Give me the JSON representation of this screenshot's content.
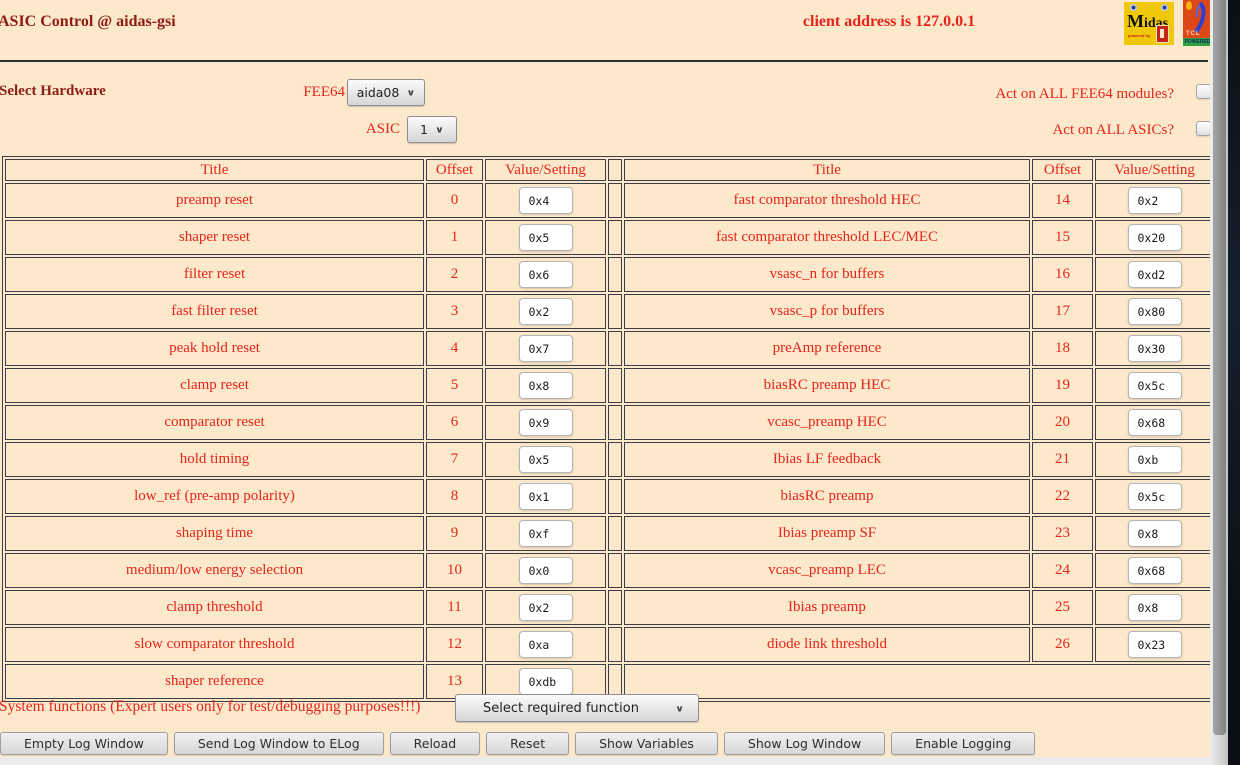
{
  "header": {
    "title": "ASIC Control @ aidas-gsi",
    "client_address": "client address is 127.0.0.1"
  },
  "logos": {
    "midas_word": "Midas",
    "midas_powered": "powered by",
    "tcl_word": "TCL",
    "tcl_powered": "POWERED"
  },
  "hardware": {
    "section_label": "Select Hardware",
    "fee64_label": "FEE64",
    "fee64_value": "aida08",
    "asic_label": "ASIC",
    "asic_value": "1",
    "all_fee64_label": "Act on ALL FEE64 modules?",
    "all_asics_label": "Act on ALL ASICs?"
  },
  "table": {
    "headers": [
      "Title",
      "Offset",
      "Value/Setting"
    ],
    "rows": [
      {
        "left": {
          "title": "preamp reset",
          "offset": "0",
          "value": "0x4"
        },
        "right": {
          "title": "fast comparator threshold HEC",
          "offset": "14",
          "value": "0x2"
        }
      },
      {
        "left": {
          "title": "shaper reset",
          "offset": "1",
          "value": "0x5"
        },
        "right": {
          "title": "fast comparator threshold LEC/MEC",
          "offset": "15",
          "value": "0x20"
        }
      },
      {
        "left": {
          "title": "filter reset",
          "offset": "2",
          "value": "0x6"
        },
        "right": {
          "title": "vsasc_n for buffers",
          "offset": "16",
          "value": "0xd2"
        }
      },
      {
        "left": {
          "title": "fast filter reset",
          "offset": "3",
          "value": "0x2"
        },
        "right": {
          "title": "vsasc_p for buffers",
          "offset": "17",
          "value": "0x80"
        }
      },
      {
        "left": {
          "title": "peak hold reset",
          "offset": "4",
          "value": "0x7"
        },
        "right": {
          "title": "preAmp reference",
          "offset": "18",
          "value": "0x30"
        }
      },
      {
        "left": {
          "title": "clamp reset",
          "offset": "5",
          "value": "0x8"
        },
        "right": {
          "title": "biasRC preamp HEC",
          "offset": "19",
          "value": "0x5c"
        }
      },
      {
        "left": {
          "title": "comparator reset",
          "offset": "6",
          "value": "0x9"
        },
        "right": {
          "title": "vcasc_preamp HEC",
          "offset": "20",
          "value": "0x68"
        }
      },
      {
        "left": {
          "title": "hold timing",
          "offset": "7",
          "value": "0x5"
        },
        "right": {
          "title": "Ibias LF feedback",
          "offset": "21",
          "value": "0xb"
        }
      },
      {
        "left": {
          "title": "low_ref (pre-amp polarity)",
          "offset": "8",
          "value": "0x1"
        },
        "right": {
          "title": "biasRC preamp",
          "offset": "22",
          "value": "0x5c"
        }
      },
      {
        "left": {
          "title": "shaping time",
          "offset": "9",
          "value": "0xf"
        },
        "right": {
          "title": "Ibias preamp SF",
          "offset": "23",
          "value": "0x8"
        }
      },
      {
        "left": {
          "title": "medium/low energy selection",
          "offset": "10",
          "value": "0x0"
        },
        "right": {
          "title": "vcasc_preamp LEC",
          "offset": "24",
          "value": "0x68"
        }
      },
      {
        "left": {
          "title": "clamp threshold",
          "offset": "11",
          "value": "0x2"
        },
        "right": {
          "title": "Ibias preamp",
          "offset": "25",
          "value": "0x8"
        }
      },
      {
        "left": {
          "title": "slow comparator threshold",
          "offset": "12",
          "value": "0xa"
        },
        "right": {
          "title": "diode link threshold",
          "offset": "26",
          "value": "0x23"
        }
      },
      {
        "left": {
          "title": "shaper reference",
          "offset": "13",
          "value": "0xdb"
        },
        "right": null
      }
    ]
  },
  "system": {
    "label": "System functions (Expert users only for test/debugging purposes!!!)",
    "select_value": "Select required function"
  },
  "buttons": [
    "Empty Log Window",
    "Send Log Window to ELog",
    "Reload",
    "Reset",
    "Show Variables",
    "Show Log Window",
    "Enable Logging"
  ],
  "colors": {
    "page_background": "#fce8cb",
    "dark_red_text": "#8f1c12",
    "bright_red_text": "#e8251c",
    "table_border": "#3d3d47"
  }
}
